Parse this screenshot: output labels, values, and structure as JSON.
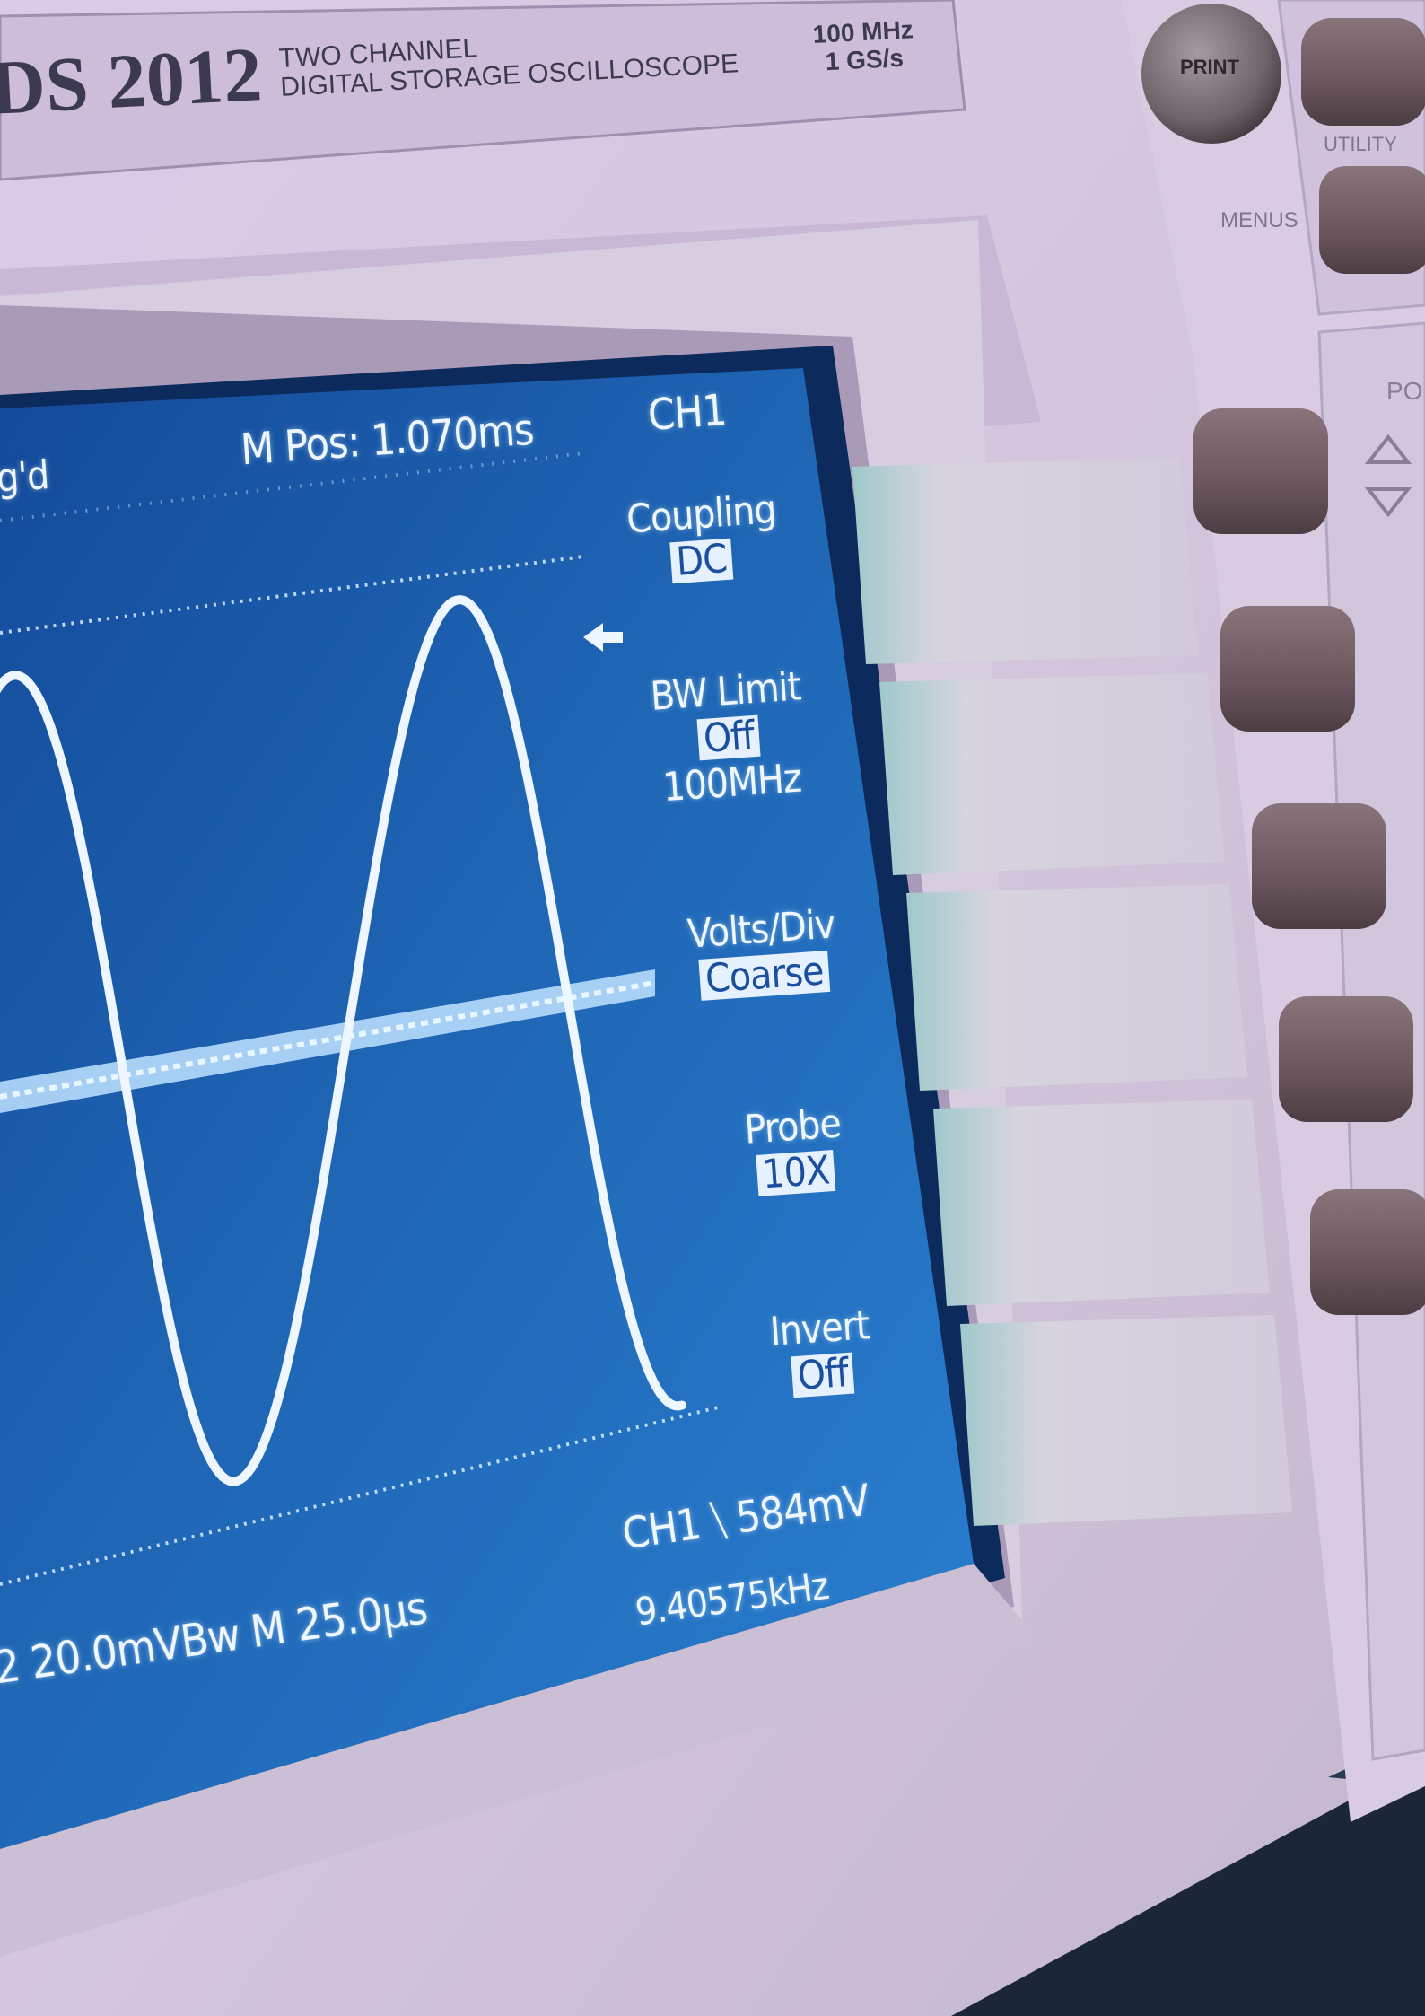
{
  "panel": {
    "model": "DS 2012",
    "subtitle_line1": "TWO CHANNEL",
    "subtitle_line2": "DIGITAL STORAGE OSCILLOSCOPE",
    "bandwidth": "100 MHz",
    "sample_rate": "1 GS/s",
    "print_label": "PRINT",
    "utility_label": "UTILITY",
    "menus_label": "MENUS",
    "position_label": "PO"
  },
  "screen": {
    "trigger_status": "g'd",
    "main_position": "M Pos: 1.070ms",
    "channel": "CH1",
    "scale_readout": "2  20.0mVBw M 25.0µs",
    "trigger_readout": "CH1 ⧹ 584mV",
    "frequency_readout": "9.40575kHz",
    "menu": [
      {
        "label": "Coupling",
        "value": "DC"
      },
      {
        "label": "BW Limit",
        "value": "Off",
        "extra": "100MHz"
      },
      {
        "label": "Volts/Div",
        "value": "Coarse"
      },
      {
        "label": "Probe",
        "value": "10X"
      },
      {
        "label": "Invert",
        "value": "Off"
      }
    ]
  },
  "colors": {
    "bezel": "#cfc4da",
    "screen": "#1e5fae",
    "trace": "#eef6ff",
    "button": "#6e5a63"
  }
}
